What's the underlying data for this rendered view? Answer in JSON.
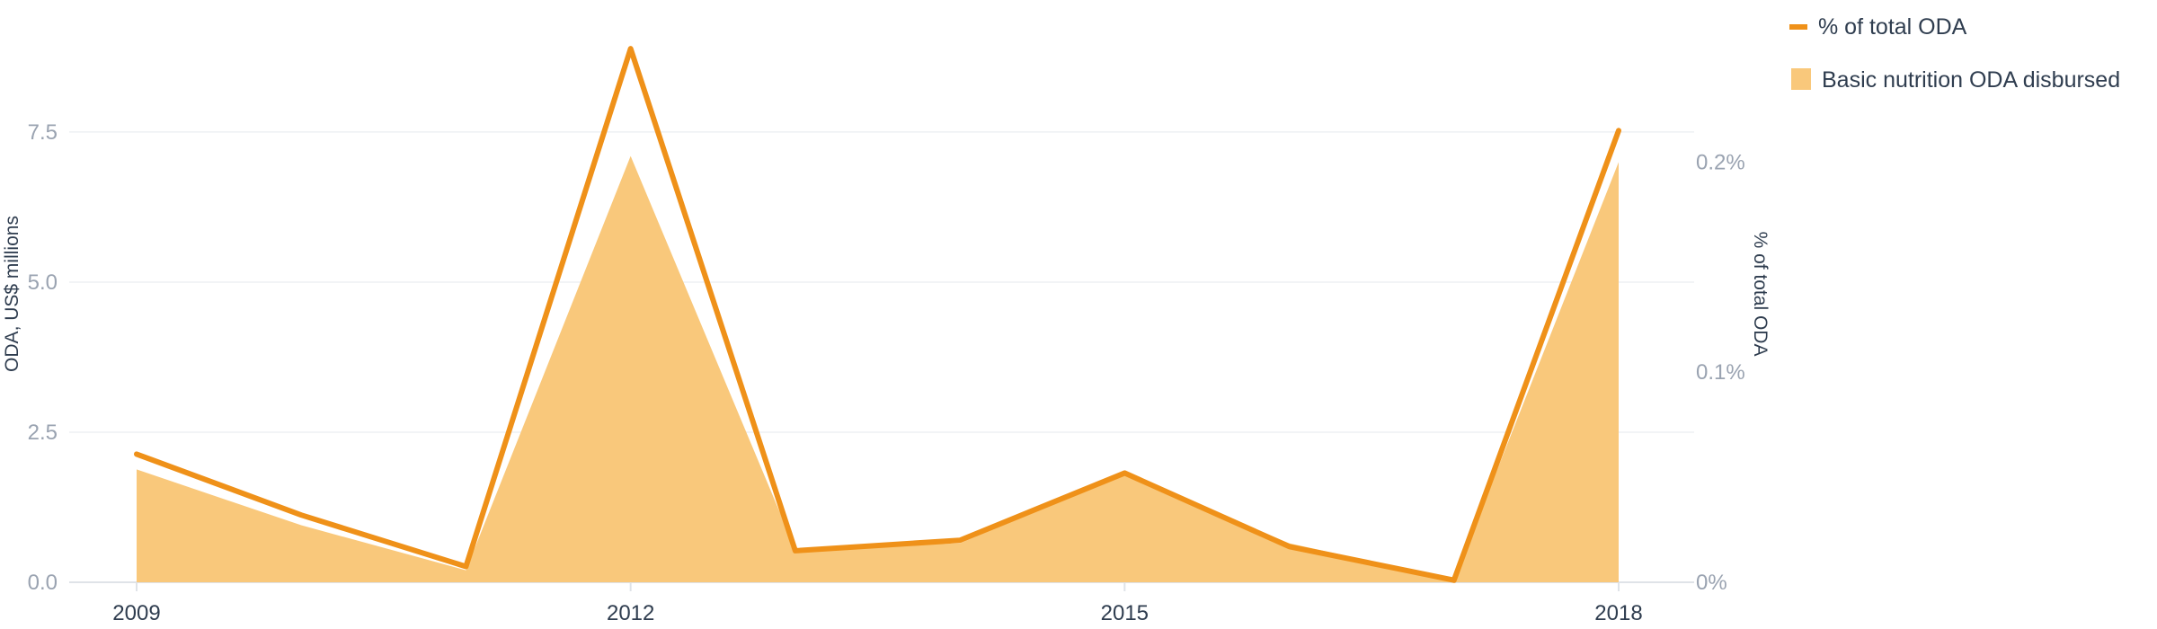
{
  "chart_data": {
    "type": "area",
    "title": "",
    "x": [
      2009,
      2010,
      2011,
      2012,
      2013,
      2014,
      2015,
      2016,
      2017,
      2018
    ],
    "x_ticks": [
      "2009",
      "2012",
      "2015",
      "2018"
    ],
    "series": [
      {
        "name": "Basic nutrition ODA disbursed",
        "type": "area",
        "axis": "left",
        "color": "#f9c87b",
        "values": [
          1.88,
          0.95,
          0.2,
          7.1,
          0.55,
          0.65,
          1.8,
          0.65,
          0.05,
          7.0
        ]
      },
      {
        "name": "% of total ODA",
        "type": "line",
        "axis": "right",
        "color": "#ef9119",
        "values": [
          0.061,
          0.032,
          0.0075,
          0.254,
          0.015,
          0.02,
          0.052,
          0.017,
          0.001,
          0.215
        ]
      }
    ],
    "left_axis": {
      "label": "ODA, US$ millions",
      "ylim": [
        0,
        9.4
      ],
      "ticks": [
        0,
        2.5,
        5,
        7.5
      ],
      "tick_labels": [
        "0.0",
        "2.5",
        "5.0",
        "7.5"
      ]
    },
    "right_axis": {
      "label": "% of total ODA",
      "ylim": [
        0,
        0.2686
      ],
      "ticks": [
        0,
        0.1,
        0.2
      ],
      "tick_labels": [
        "0%",
        "0.1%",
        "0.2%"
      ]
    },
    "grid": true,
    "legend_position": "top-right",
    "legend": [
      {
        "label": "% of total ODA",
        "marker": "line",
        "color": "#ef9119"
      },
      {
        "label": "Basic nutrition ODA disbursed",
        "marker": "square",
        "color": "#f9c87b"
      }
    ]
  }
}
